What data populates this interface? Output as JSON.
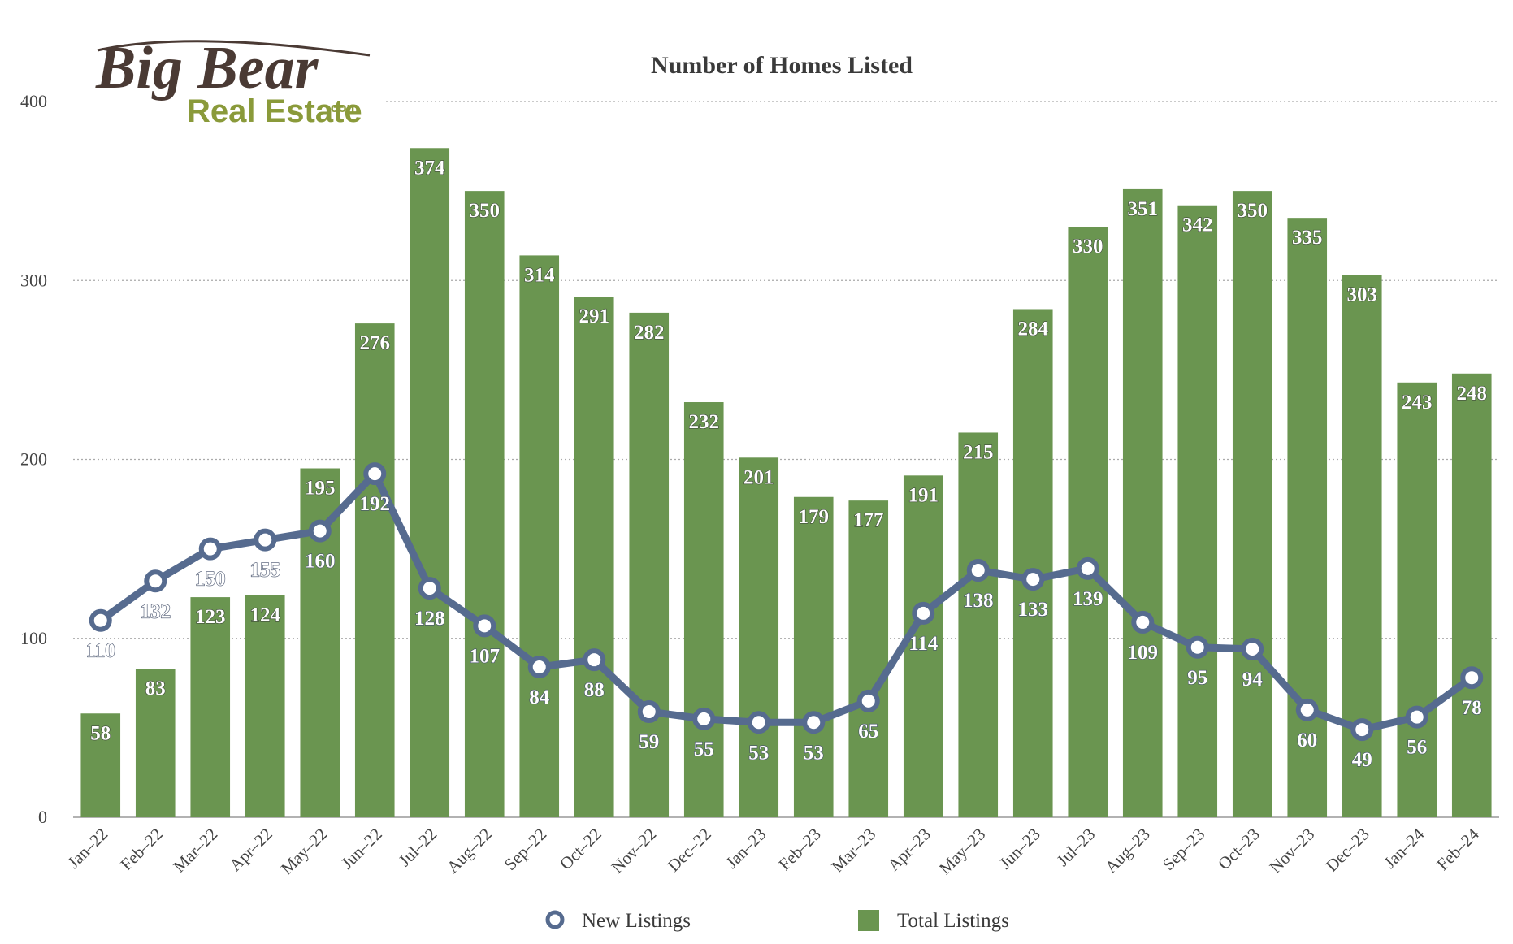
{
  "logo": {
    "line1": "Big Bear",
    "line2": "Real Estate",
    "suffix": ".com"
  },
  "chart_data": {
    "type": "bar",
    "title": "Number of Homes Listed",
    "xlabel": "",
    "ylabel": "",
    "ylim": [
      0,
      400
    ],
    "yticks": [
      0,
      100,
      200,
      300,
      400
    ],
    "grid": true,
    "legend_position": "bottom",
    "categories": [
      "Jan–22",
      "Feb–22",
      "Mar–22",
      "Apr–22",
      "May–22",
      "Jun–22",
      "Jul–22",
      "Aug–22",
      "Sep–22",
      "Oct–22",
      "Nov–22",
      "Dec–22",
      "Jan–23",
      "Feb–23",
      "Mar–23",
      "Apr–23",
      "May–23",
      "Jun–23",
      "Jul–23",
      "Aug–23",
      "Sep–23",
      "Oct–23",
      "Nov–23",
      "Dec–23",
      "Jan–24",
      "Feb–24"
    ],
    "series": [
      {
        "name": "New Listings",
        "kind": "line",
        "color": "#566b8f",
        "values": [
          110,
          132,
          150,
          155,
          160,
          192,
          128,
          107,
          84,
          88,
          59,
          55,
          53,
          53,
          65,
          114,
          138,
          133,
          139,
          109,
          95,
          94,
          60,
          49,
          56,
          78
        ]
      },
      {
        "name": "Total Listings",
        "kind": "bar",
        "color": "#6a9550",
        "values": [
          58,
          83,
          123,
          124,
          195,
          276,
          374,
          350,
          314,
          291,
          282,
          232,
          201,
          179,
          177,
          191,
          215,
          284,
          330,
          351,
          342,
          350,
          335,
          303,
          243,
          248
        ]
      }
    ]
  }
}
